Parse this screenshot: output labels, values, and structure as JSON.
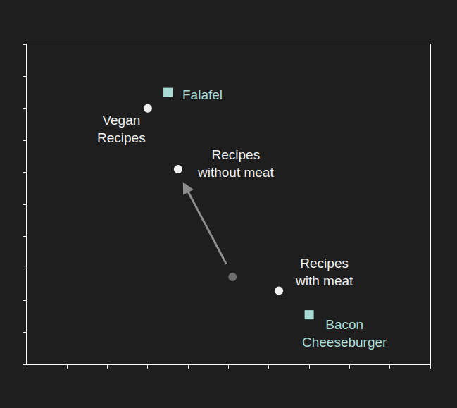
{
  "chart_data": {
    "type": "scatter",
    "xlim": [
      0,
      10
    ],
    "ylim": [
      0,
      10
    ],
    "xticks": [
      0,
      1,
      2,
      3,
      4,
      5,
      6,
      7,
      8,
      9,
      10
    ],
    "yticks": [
      0,
      1,
      2,
      3,
      4,
      5,
      6,
      7,
      8,
      9,
      10
    ],
    "tick_labels": false,
    "grid": false,
    "series": [
      {
        "marker": "square",
        "color": "#a8dcd5",
        "x": [
          3.5,
          7.0
        ],
        "y": [
          8.5,
          1.55
        ],
        "labels": [
          "Falafel",
          "Bacon\nCheeseburger"
        ]
      },
      {
        "marker": "circle",
        "color": "#f0f0f0",
        "x": [
          3.0,
          3.75,
          6.25
        ],
        "y": [
          8.0,
          6.1,
          2.3
        ],
        "labels": [
          "Vegan\nRecipes",
          "Recipes\nwithout meat",
          "Recipes\nwith meat"
        ]
      },
      {
        "marker": "circle",
        "color": "#6e6e6e",
        "x": [
          5.1
        ],
        "y": [
          2.73
        ]
      }
    ],
    "annotations": [
      {
        "type": "arrow",
        "x": 3.87,
        "y": 5.7,
        "ax": 4.96,
        "ay": 3.1,
        "color": "#8c8c8c"
      }
    ]
  }
}
